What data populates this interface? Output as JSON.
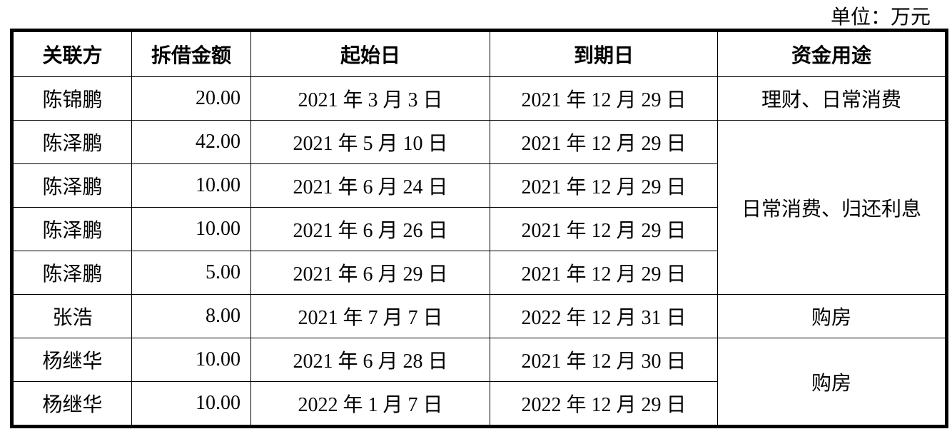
{
  "unit_label": "单位：万元",
  "headers": [
    "关联方",
    "拆借金额",
    "起始日",
    "到期日",
    "资金用途"
  ],
  "rows": [
    {
      "party": "陈锦鹏",
      "amount": "20.00",
      "start": "2021 年 3 月 3 日",
      "end": "2021 年 12 月 29 日",
      "purpose": "理财、日常消费"
    },
    {
      "party": "陈泽鹏",
      "amount": "42.00",
      "start": "2021 年 5 月 10 日",
      "end": "2021 年 12 月 29 日",
      "purpose": "日常消费、归还利息"
    },
    {
      "party": "陈泽鹏",
      "amount": "10.00",
      "start": "2021 年 6 月 24 日",
      "end": "2021 年 12 月 29 日"
    },
    {
      "party": "陈泽鹏",
      "amount": "10.00",
      "start": "2021 年 6 月 26 日",
      "end": "2021 年 12 月 29 日"
    },
    {
      "party": "陈泽鹏",
      "amount": "5.00",
      "start": "2021 年 6 月 29 日",
      "end": "2021 年 12 月 29 日"
    },
    {
      "party": "张浩",
      "amount": "8.00",
      "start": "2021 年 7 月 7 日",
      "end": "2022 年 12 月 31 日",
      "purpose": "购房"
    },
    {
      "party": "杨继华",
      "amount": "10.00",
      "start": "2021 年 6 月 28 日",
      "end": "2021 年 12 月 30 日",
      "purpose": "购房"
    },
    {
      "party": "杨继华",
      "amount": "10.00",
      "start": "2022 年 1 月 7 日",
      "end": "2022 年 12 月 29 日"
    }
  ]
}
